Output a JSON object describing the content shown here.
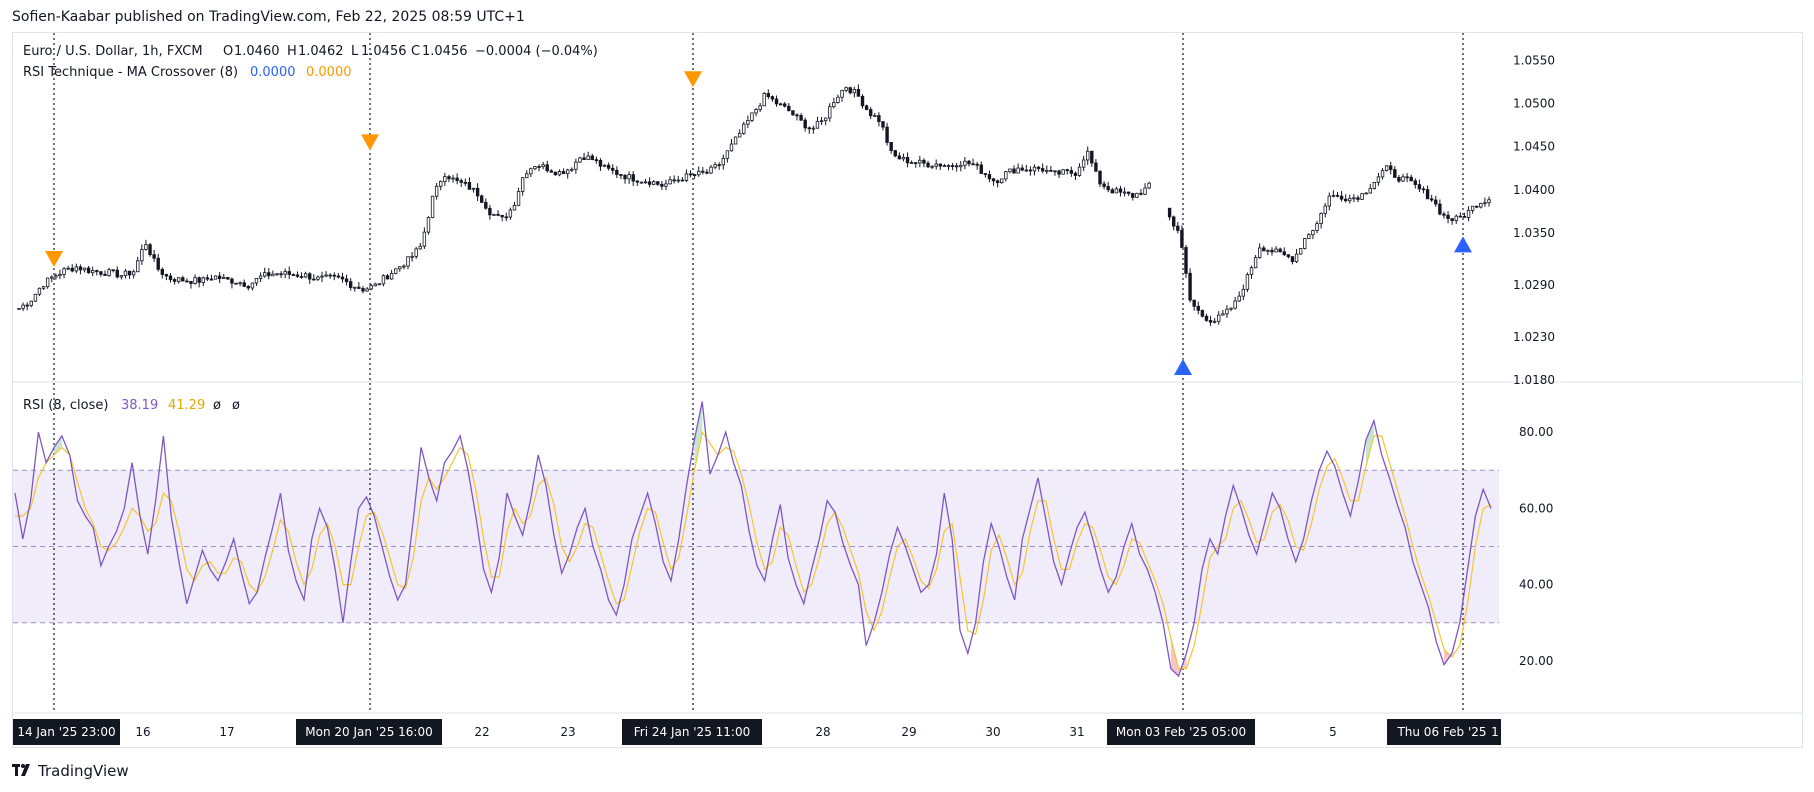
{
  "publisher": "Sofien-Kaabar published on TradingView.com, Feb 22, 2025 08:59 UTC+1",
  "brand": {
    "name": "TradingView",
    "icon": "tradingview-logo-icon"
  },
  "main_legend": {
    "symbol": "Euro / U.S. Dollar, 1h, FXCM",
    "o_label": "O",
    "o": "1.0460",
    "h_label": "H",
    "h": "1.0462",
    "l_label": "L",
    "l": "1.0456",
    "c_label": "C",
    "c": "1.0456",
    "change": "−0.0004 (−0.04%)"
  },
  "indicator_legend": {
    "name": "RSI Technique - MA Crossover (8)",
    "v1": "0.0000",
    "v2": "0.0000"
  },
  "rsi_legend": {
    "name": "RSI (8, close)",
    "rsi": "38.19",
    "ma": "41.29",
    "e1": "ø",
    "e2": "ø"
  },
  "colors": {
    "rsi_line": "#7e57c2",
    "rsi_ma": "#f7c531",
    "band_fill": "#f0ecfa",
    "sell_marker": "#ff9800",
    "buy_marker": "#2962ff",
    "candle": "#131722",
    "ob_fill": "#b7dfc5",
    "os_fill": "#f6b5b8"
  },
  "time_axis": {
    "ticks": [
      "16",
      "17",
      "22",
      "23",
      "28",
      "29",
      "30",
      "31",
      "5"
    ],
    "highlighted": [
      "14 Jan '25   23:00",
      "Mon 20 Jan '25   16:00",
      "Fri 24 Jan '25   11:00",
      "Mon 03 Feb '25   05:00",
      "Thu 06 Feb '25",
      "1"
    ]
  },
  "price_axis": {
    "ticks": [
      "1.0550",
      "1.0500",
      "1.0450",
      "1.0400",
      "1.0350",
      "1.0290",
      "1.0230",
      "1.0180"
    ]
  },
  "rsi_axis": {
    "ticks": [
      "80.00",
      "60.00",
      "40.00",
      "20.00"
    ]
  },
  "chart_data": [
    {
      "type": "candlestick",
      "title": "Euro / U.S. Dollar, 1h, FXCM",
      "series": [
        {
          "name": "Euro / U.S. Dollar",
          "approx_path": [
            1.0263,
            1.0272,
            1.029,
            1.03,
            1.0307,
            1.0311,
            1.0307,
            1.0305,
            1.0304,
            1.0301,
            1.0306,
            1.034,
            1.031,
            1.0298,
            1.0296,
            1.0295,
            1.0295,
            1.03,
            1.0296,
            1.0294,
            1.029,
            1.0299,
            1.0303,
            1.0303,
            1.0302,
            1.0301,
            1.0297,
            1.0298,
            1.0297,
            1.029,
            1.0285,
            1.0289,
            1.03,
            1.031,
            1.032,
            1.0335,
            1.039,
            1.042,
            1.041,
            1.0405,
            1.0395,
            1.0375,
            1.0365,
            1.038,
            1.042,
            1.043,
            1.0425,
            1.042,
            1.0425,
            1.044,
            1.0435,
            1.0425,
            1.042,
            1.0415,
            1.0412,
            1.041,
            1.0405,
            1.041,
            1.0415,
            1.0418,
            1.042,
            1.043,
            1.045,
            1.047,
            1.049,
            1.051,
            1.05,
            1.0492,
            1.048,
            1.047,
            1.048,
            1.0505,
            1.052,
            1.051,
            1.049,
            1.048,
            1.044,
            1.0435,
            1.0432,
            1.043,
            1.043,
            1.0428,
            1.0432,
            1.043,
            1.042,
            1.041,
            1.042,
            1.0425,
            1.0424,
            1.0425,
            1.0418,
            1.042,
            1.042,
            1.0445,
            1.041,
            1.04,
            1.0396,
            1.0393,
            1.04,
            1.041,
            1.0372,
            1.0352,
            1.027,
            1.0255,
            1.0248,
            1.0256,
            1.027,
            1.03,
            1.0335,
            1.033,
            1.0325,
            1.032,
            1.0345,
            1.036,
            1.0392,
            1.0393,
            1.039,
            1.0395,
            1.041,
            1.0425,
            1.0415,
            1.041,
            1.04,
            1.039,
            1.037,
            1.0365,
            1.0372,
            1.0385,
            1.039
          ]
        }
      ],
      "ylim": [
        1.018,
        1.057
      ],
      "markers": [
        {
          "type": "sell",
          "date": "Tue 14 Jan '25 23:00",
          "price": 1.032
        },
        {
          "type": "sell",
          "date": "Mon 20 Jan '25 16:00",
          "price": 1.0455
        },
        {
          "type": "sell",
          "date": "Fri 24 Jan '25 11:00",
          "price": 1.0528
        },
        {
          "type": "buy",
          "date": "Mon 03 Feb '25 05:00",
          "price": 1.0195
        },
        {
          "type": "buy",
          "date": "Thu 06 Feb '25",
          "price": 1.0337
        }
      ]
    },
    {
      "type": "line",
      "title": "RSI (8, close)",
      "ylim": [
        10,
        90
      ],
      "levels": [
        70,
        50,
        30
      ],
      "series": [
        {
          "name": "RSI",
          "values": [
            64,
            52,
            62,
            80,
            72,
            76,
            79,
            74,
            62,
            58,
            55,
            45,
            50,
            54,
            60,
            72,
            58,
            48,
            62,
            79,
            58,
            46,
            35,
            42,
            49,
            44,
            41,
            46,
            52,
            43,
            35,
            38,
            47,
            55,
            64,
            49,
            41,
            36,
            52,
            60,
            55,
            44,
            30,
            46,
            60,
            63,
            58,
            50,
            42,
            36,
            40,
            57,
            76,
            68,
            62,
            72,
            75,
            79,
            70,
            58,
            44,
            38,
            47,
            64,
            58,
            53,
            62,
            74,
            66,
            53,
            43,
            48,
            55,
            60,
            50,
            44,
            36,
            32,
            40,
            52,
            58,
            64,
            56,
            46,
            41,
            52,
            66,
            78,
            88,
            69,
            74,
            80,
            72,
            66,
            54,
            45,
            41,
            52,
            61,
            47,
            40,
            35,
            44,
            52,
            62,
            59,
            51,
            45,
            40,
            24,
            30,
            38,
            48,
            55,
            50,
            44,
            38,
            40,
            48,
            64,
            52,
            28,
            22,
            30,
            46,
            56,
            50,
            42,
            36,
            52,
            60,
            68,
            57,
            46,
            40,
            48,
            55,
            59,
            52,
            44,
            38,
            42,
            50,
            56,
            48,
            44,
            38,
            30,
            18,
            16,
            22,
            30,
            44,
            52,
            48,
            58,
            66,
            60,
            53,
            48,
            56,
            64,
            60,
            52,
            46,
            52,
            62,
            70,
            75,
            71,
            64,
            58,
            67,
            78,
            83,
            74,
            68,
            61,
            55,
            46,
            40,
            34,
            25,
            19,
            22,
            30,
            44,
            58,
            65,
            60
          ]
        },
        {
          "name": "MA",
          "values": [
            58,
            58,
            60,
            68,
            72,
            74,
            76,
            74,
            67,
            60,
            56,
            50,
            49,
            51,
            55,
            60,
            58,
            54,
            56,
            64,
            62,
            54,
            44,
            41,
            45,
            46,
            43,
            43,
            47,
            46,
            40,
            38,
            42,
            49,
            57,
            54,
            46,
            40,
            44,
            53,
            56,
            50,
            40,
            40,
            50,
            58,
            59,
            54,
            47,
            40,
            39,
            47,
            62,
            68,
            65,
            68,
            72,
            76,
            74,
            65,
            52,
            42,
            42,
            54,
            60,
            56,
            58,
            66,
            68,
            61,
            50,
            46,
            50,
            56,
            55,
            48,
            41,
            35,
            36,
            45,
            54,
            60,
            59,
            51,
            44,
            47,
            58,
            70,
            80,
            77,
            74,
            76,
            75,
            69,
            61,
            51,
            44,
            46,
            55,
            53,
            45,
            38,
            40,
            47,
            56,
            59,
            55,
            49,
            43,
            33,
            28,
            33,
            42,
            50,
            52,
            47,
            41,
            39,
            44,
            54,
            56,
            42,
            28,
            27,
            36,
            49,
            53,
            47,
            40,
            43,
            54,
            62,
            62,
            52,
            44,
            44,
            51,
            56,
            55,
            49,
            42,
            40,
            45,
            52,
            51,
            46,
            41,
            35,
            26,
            18,
            18,
            24,
            35,
            47,
            50,
            52,
            60,
            62,
            57,
            51,
            52,
            59,
            61,
            57,
            50,
            49,
            56,
            65,
            71,
            73,
            68,
            62,
            62,
            71,
            79,
            79,
            72,
            65,
            58,
            50,
            43,
            37,
            30,
            23,
            21,
            24,
            35,
            50,
            60,
            61
          ]
        }
      ]
    }
  ]
}
